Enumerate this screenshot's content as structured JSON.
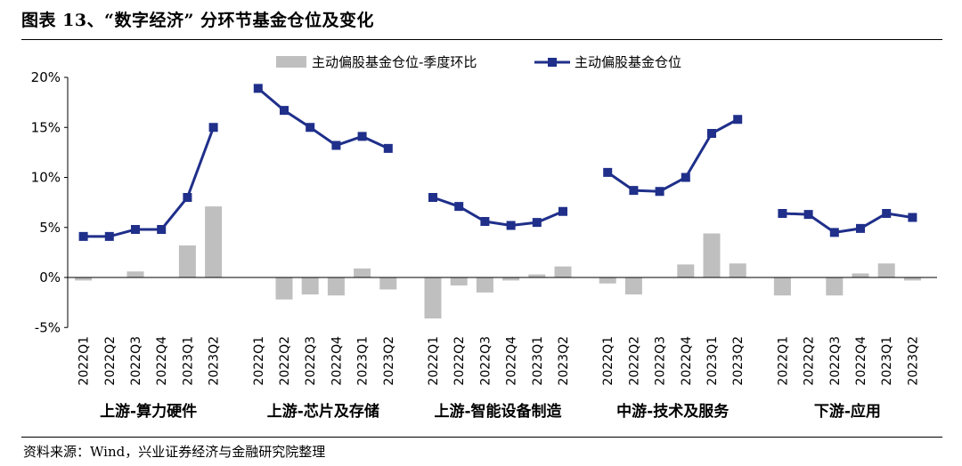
{
  "figure": {
    "title": "图表 13、“数字经济” 分环节基金仓位及变化",
    "source": "资料来源：Wind，兴业证券经济与金融研究院整理"
  },
  "chart_data": {
    "type": "bar+line",
    "title": "图表 13、“数字经济” 分环节基金仓位及变化",
    "y_ticks": [
      "20%",
      "15%",
      "10%",
      "5%",
      "0%",
      "-5%"
    ],
    "ylim": [
      -5,
      20
    ],
    "y_tick_values": [
      20,
      15,
      10,
      5,
      0,
      -5
    ],
    "grid": false,
    "legend_position": "top-center",
    "colors": {
      "bar": "#bfbfbf",
      "line": "#1f2f8a"
    },
    "series": [
      {
        "name": "主动偏股基金仓位-季度环比",
        "kind": "bar"
      },
      {
        "name": "主动偏股基金仓位",
        "kind": "line"
      }
    ],
    "groups": [
      {
        "label": "上游-算力硬件",
        "quarters": [
          "2022Q1",
          "2022Q2",
          "2022Q3",
          "2022Q4",
          "2023Q1",
          "2023Q2"
        ],
        "change": [
          -0.3,
          0.0,
          0.6,
          0.0,
          3.2,
          7.1
        ],
        "position": [
          4.1,
          4.1,
          4.8,
          4.8,
          8.0,
          15.0
        ]
      },
      {
        "label": "上游-芯片及存储",
        "quarters": [
          "2022Q1",
          "2022Q2",
          "2022Q3",
          "2022Q4",
          "2023Q1",
          "2023Q2"
        ],
        "change": [
          0.0,
          -2.2,
          -1.7,
          -1.8,
          0.9,
          -1.2
        ],
        "position": [
          18.9,
          16.7,
          15.0,
          13.2,
          14.1,
          12.9
        ]
      },
      {
        "label": "上游-智能设备制造",
        "quarters": [
          "2022Q1",
          "2022Q2",
          "2022Q3",
          "2022Q4",
          "2023Q1",
          "2023Q2"
        ],
        "change": [
          -4.1,
          -0.8,
          -1.5,
          -0.3,
          0.3,
          1.1
        ],
        "position": [
          8.0,
          7.1,
          5.6,
          5.2,
          5.5,
          6.6
        ]
      },
      {
        "label": "中游-技术及服务",
        "quarters": [
          "2022Q1",
          "2022Q2",
          "2022Q3",
          "2022Q4",
          "2023Q1",
          "2023Q2"
        ],
        "change": [
          -0.6,
          -1.7,
          0.0,
          1.3,
          4.4,
          1.4
        ],
        "position": [
          10.5,
          8.7,
          8.6,
          10.0,
          14.4,
          15.8
        ]
      },
      {
        "label": "下游-应用",
        "quarters": [
          "2022Q1",
          "2022Q2",
          "2022Q3",
          "2022Q4",
          "2023Q1",
          "2023Q2"
        ],
        "change": [
          -1.8,
          0.0,
          -1.8,
          0.4,
          1.4,
          -0.3
        ],
        "position": [
          6.4,
          6.3,
          4.5,
          4.9,
          6.4,
          6.0
        ]
      }
    ]
  }
}
